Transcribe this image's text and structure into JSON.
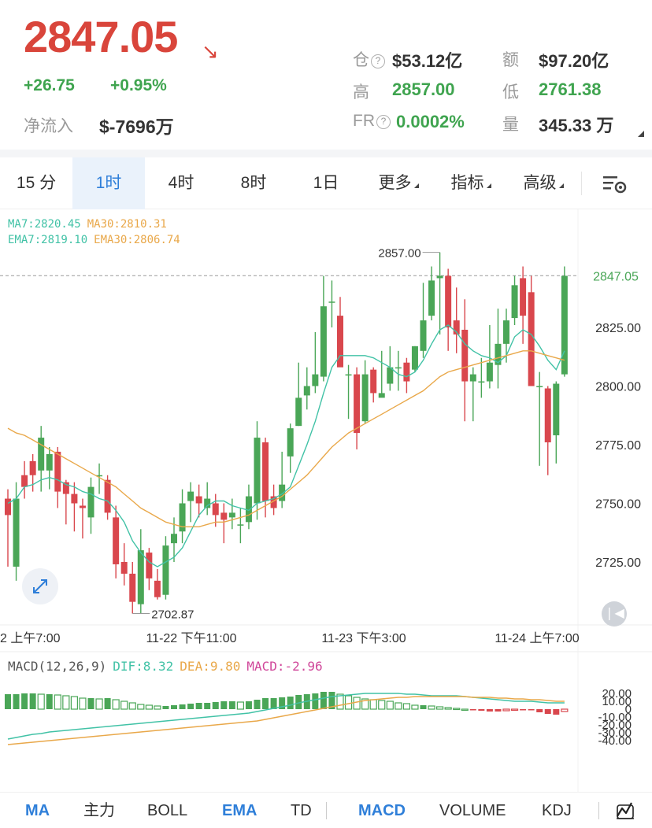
{
  "header": {
    "price": "2847.05",
    "change": "+26.75",
    "change_pct": "+0.95%",
    "net_inflow_label": "净流入",
    "net_inflow_value": "$-7696万",
    "stats": [
      {
        "label": "仓",
        "value": "$53.12亿",
        "info": true,
        "color": "dark"
      },
      {
        "label": "额",
        "value": "$97.20亿",
        "info": false,
        "color": "dark"
      },
      {
        "label": "高",
        "value": "2857.00",
        "info": false,
        "color": "green"
      },
      {
        "label": "低",
        "value": "2761.38",
        "info": false,
        "color": "green"
      },
      {
        "label": "FR",
        "value": "0.0002%",
        "info": true,
        "color": "green"
      },
      {
        "label": "量",
        "value": "345.33 万",
        "info": false,
        "color": "dark"
      }
    ]
  },
  "tabs": [
    "15 分",
    "1时",
    "4时",
    "8时",
    "1日",
    "更多",
    "指标",
    "高级"
  ],
  "active_tab": "1时",
  "legend": {
    "ma7": "MA7:2820.45",
    "ma30": "MA30:2810.31",
    "ema7": "EMA7:2819.10",
    "ema30": "EMA30:2806.74"
  },
  "macd_legend": {
    "name": "MACD(12,26,9)",
    "dif": "DIF:8.32",
    "dea": "DEA:9.80",
    "macd": "MACD:-2.96"
  },
  "colors": {
    "up": "#4aa657",
    "down": "#d9474d",
    "accent": "#2f7fd9",
    "ma7": "#41c2a6",
    "ma30": "#e9a84a",
    "macd": "#d0479a"
  },
  "chart_data": [
    {
      "type": "candlestick",
      "timeframe": "1时",
      "y_ticks": [
        "2825.00",
        "2800.00",
        "2775.00",
        "2750.00",
        "2725.00"
      ],
      "ylim": [
        2700,
        2857
      ],
      "x_labels": [
        "2 上午7:00",
        "11-22 下午11:00",
        "11-23 下午3:00",
        "11-24 上午7:00"
      ],
      "current_price": "2847.05",
      "high_label": "2857.00",
      "low_label": "2702.87",
      "candles": [
        [
          2752,
          2745,
          2756,
          2723
        ],
        [
          2723,
          2752,
          2759,
          2717
        ],
        [
          2762,
          2757,
          2768,
          2752
        ],
        [
          2768,
          2762,
          2771,
          2755
        ],
        [
          2764,
          2778,
          2783,
          2755
        ],
        [
          2764,
          2771,
          2774,
          2756
        ],
        [
          2772,
          2755,
          2774,
          2748
        ],
        [
          2759,
          2754,
          2760,
          2741
        ],
        [
          2754,
          2750,
          2759,
          2738
        ],
        [
          2749,
          2748,
          2752,
          2735
        ],
        [
          2744,
          2757,
          2761,
          2737
        ],
        [
          2762,
          2762,
          2767,
          2754
        ],
        [
          2760,
          2746,
          2762,
          2743
        ],
        [
          2744,
          2724,
          2749,
          2718
        ],
        [
          2725,
          2720,
          2733,
          2715
        ],
        [
          2720,
          2708,
          2725,
          2703
        ],
        [
          2707,
          2730,
          2739,
          2703
        ],
        [
          2729,
          2718,
          2731,
          2713
        ],
        [
          2717,
          2710,
          2722,
          2709
        ],
        [
          2711,
          2732,
          2736,
          2709
        ],
        [
          2733,
          2737,
          2744,
          2725
        ],
        [
          2738,
          2750,
          2756,
          2733
        ],
        [
          2751,
          2755,
          2759,
          2742
        ],
        [
          2753,
          2750,
          2758,
          2744
        ],
        [
          2748,
          2752,
          2759,
          2745
        ],
        [
          2750,
          2745,
          2754,
          2740
        ],
        [
          2746,
          2743,
          2750,
          2733
        ],
        [
          2744,
          2746,
          2752,
          2739
        ],
        [
          2741,
          2741,
          2748,
          2733
        ],
        [
          2742,
          2753,
          2758,
          2739
        ],
        [
          2750,
          2778,
          2785,
          2743
        ],
        [
          2776,
          2751,
          2778,
          2744
        ],
        [
          2753,
          2748,
          2758,
          2745
        ],
        [
          2751,
          2758,
          2772,
          2748
        ],
        [
          2770,
          2782,
          2784,
          2763
        ],
        [
          2783,
          2795,
          2810,
          2783
        ],
        [
          2796,
          2800,
          2808,
          2790
        ],
        [
          2800,
          2805,
          2823,
          2797
        ],
        [
          2804,
          2834,
          2847,
          2802
        ],
        [
          2836,
          2836,
          2845,
          2825
        ],
        [
          2830,
          2808,
          2838,
          2809
        ],
        [
          2805,
          2805,
          2809,
          2786
        ],
        [
          2805,
          2780,
          2808,
          2773
        ],
        [
          2785,
          2805,
          2811,
          2784
        ],
        [
          2807,
          2797,
          2808,
          2793
        ],
        [
          2795,
          2797,
          2815,
          2796
        ],
        [
          2801,
          2808,
          2817,
          2798
        ],
        [
          2808,
          2808,
          2815,
          2798
        ],
        [
          2810,
          2802,
          2812,
          2797
        ],
        [
          2807,
          2817,
          2817,
          2806
        ],
        [
          2815,
          2828,
          2844,
          2812
        ],
        [
          2830,
          2845,
          2851,
          2828
        ],
        [
          2846,
          2847,
          2857,
          2822
        ],
        [
          2847,
          2825,
          2850,
          2815
        ],
        [
          2828,
          2822,
          2842,
          2814
        ],
        [
          2824,
          2802,
          2837,
          2785
        ],
        [
          2802,
          2805,
          2808,
          2785
        ],
        [
          2802,
          2802,
          2812,
          2795
        ],
        [
          2802,
          2810,
          2826,
          2799
        ],
        [
          2809,
          2818,
          2833,
          2799
        ],
        [
          2818,
          2828,
          2833,
          2810
        ],
        [
          2829,
          2843,
          2847,
          2826
        ],
        [
          2846,
          2830,
          2851,
          2818
        ],
        [
          2840,
          2800,
          2847,
          2800
        ],
        [
          2800,
          2800,
          2806,
          2766
        ],
        [
          2799,
          2776,
          2800,
          2762
        ],
        [
          2779,
          2801,
          2802,
          2767
        ],
        [
          2805,
          2847,
          2851,
          2804
        ]
      ],
      "ma7": [
        2750,
        2752,
        2757,
        2758,
        2760,
        2761,
        2760,
        2758,
        2757,
        2755,
        2754,
        2752,
        2751,
        2747,
        2742,
        2734,
        2729,
        2725,
        2723,
        2725,
        2727,
        2731,
        2738,
        2745,
        2749,
        2751,
        2751,
        2749,
        2748,
        2747,
        2750,
        2751,
        2752,
        2754,
        2757,
        2766,
        2775,
        2785,
        2797,
        2808,
        2813,
        2813,
        2813,
        2813,
        2812,
        2810,
        2808,
        2805,
        2804,
        2806,
        2811,
        2818,
        2824,
        2826,
        2823,
        2818,
        2815,
        2813,
        2812,
        2810,
        2813,
        2821,
        2824,
        2822,
        2817,
        2811,
        2807,
        2815
      ],
      "ma30": [
        2782,
        2780,
        2779,
        2777,
        2775,
        2773,
        2771,
        2769,
        2767,
        2765,
        2763,
        2761,
        2759,
        2757,
        2754,
        2751,
        2748,
        2746,
        2744,
        2742,
        2741,
        2740,
        2740,
        2740,
        2741,
        2742,
        2742,
        2743,
        2744,
        2745,
        2747,
        2749,
        2751,
        2753,
        2756,
        2759,
        2762,
        2766,
        2770,
        2774,
        2777,
        2780,
        2782,
        2784,
        2786,
        2788,
        2790,
        2792,
        2794,
        2796,
        2798,
        2801,
        2804,
        2806,
        2807,
        2808,
        2809,
        2810,
        2811,
        2812,
        2813,
        2814,
        2815,
        2815,
        2814,
        2813,
        2812,
        2811
      ]
    },
    {
      "type": "bar",
      "indicator": "MACD(12,26,9)",
      "y_ticks": [
        "20.00",
        "10.00",
        "0",
        "-10.00",
        "-20.00",
        "-30.00",
        "-40.00"
      ],
      "ylim": [
        -45,
        25
      ],
      "histogram": [
        19,
        19,
        20,
        20,
        19,
        19,
        18,
        17,
        16,
        14,
        14,
        13,
        14,
        12,
        10,
        8,
        6,
        5,
        4,
        4,
        5,
        6,
        7,
        8,
        8,
        9,
        10,
        10,
        9,
        10,
        12,
        14,
        14,
        15,
        16,
        18,
        19,
        20,
        22,
        22,
        19,
        17,
        15,
        13,
        12,
        11,
        10,
        8,
        7,
        5,
        5,
        4,
        3,
        2,
        1,
        0,
        -1,
        -2,
        -3,
        -3,
        -2,
        -1,
        -1,
        -1,
        -4,
        -6,
        -7,
        -3
      ],
      "dif": [
        -38,
        -36,
        -34,
        -32,
        -31,
        -29,
        -28,
        -27,
        -26,
        -25,
        -24,
        -23,
        -22,
        -21,
        -20,
        -19,
        -18,
        -17,
        -16,
        -15,
        -14,
        -13,
        -12,
        -11,
        -10,
        -9,
        -8,
        -7,
        -6,
        -5,
        -3,
        -1,
        1,
        3,
        5,
        8,
        10,
        12,
        14,
        16,
        17,
        18,
        19,
        20,
        20,
        20,
        20,
        20,
        19,
        19,
        18,
        17,
        17,
        17,
        17,
        16,
        15,
        14,
        13,
        12,
        11,
        10,
        10,
        10,
        9,
        8,
        8,
        8
      ],
      "dea": [
        -45,
        -44,
        -43,
        -42,
        -41,
        -40,
        -39,
        -38,
        -37,
        -36,
        -35,
        -34,
        -33,
        -32,
        -31,
        -30,
        -29,
        -28,
        -27,
        -26,
        -25,
        -24,
        -23,
        -22,
        -21,
        -20,
        -19,
        -18,
        -17,
        -16,
        -15,
        -13,
        -11,
        -9,
        -7,
        -5,
        -3,
        -1,
        1,
        3,
        5,
        7,
        9,
        11,
        12,
        13,
        14,
        15,
        15,
        16,
        16,
        16,
        16,
        16,
        16,
        16,
        15,
        15,
        15,
        14,
        14,
        13,
        13,
        12,
        12,
        11,
        10,
        10
      ]
    }
  ],
  "bottom_bar": {
    "items": [
      "MA",
      "主力",
      "BOLL",
      "EMA",
      "TD",
      "MACD",
      "VOLUME",
      "KDJ"
    ],
    "active": [
      "MA",
      "EMA",
      "MACD"
    ]
  }
}
